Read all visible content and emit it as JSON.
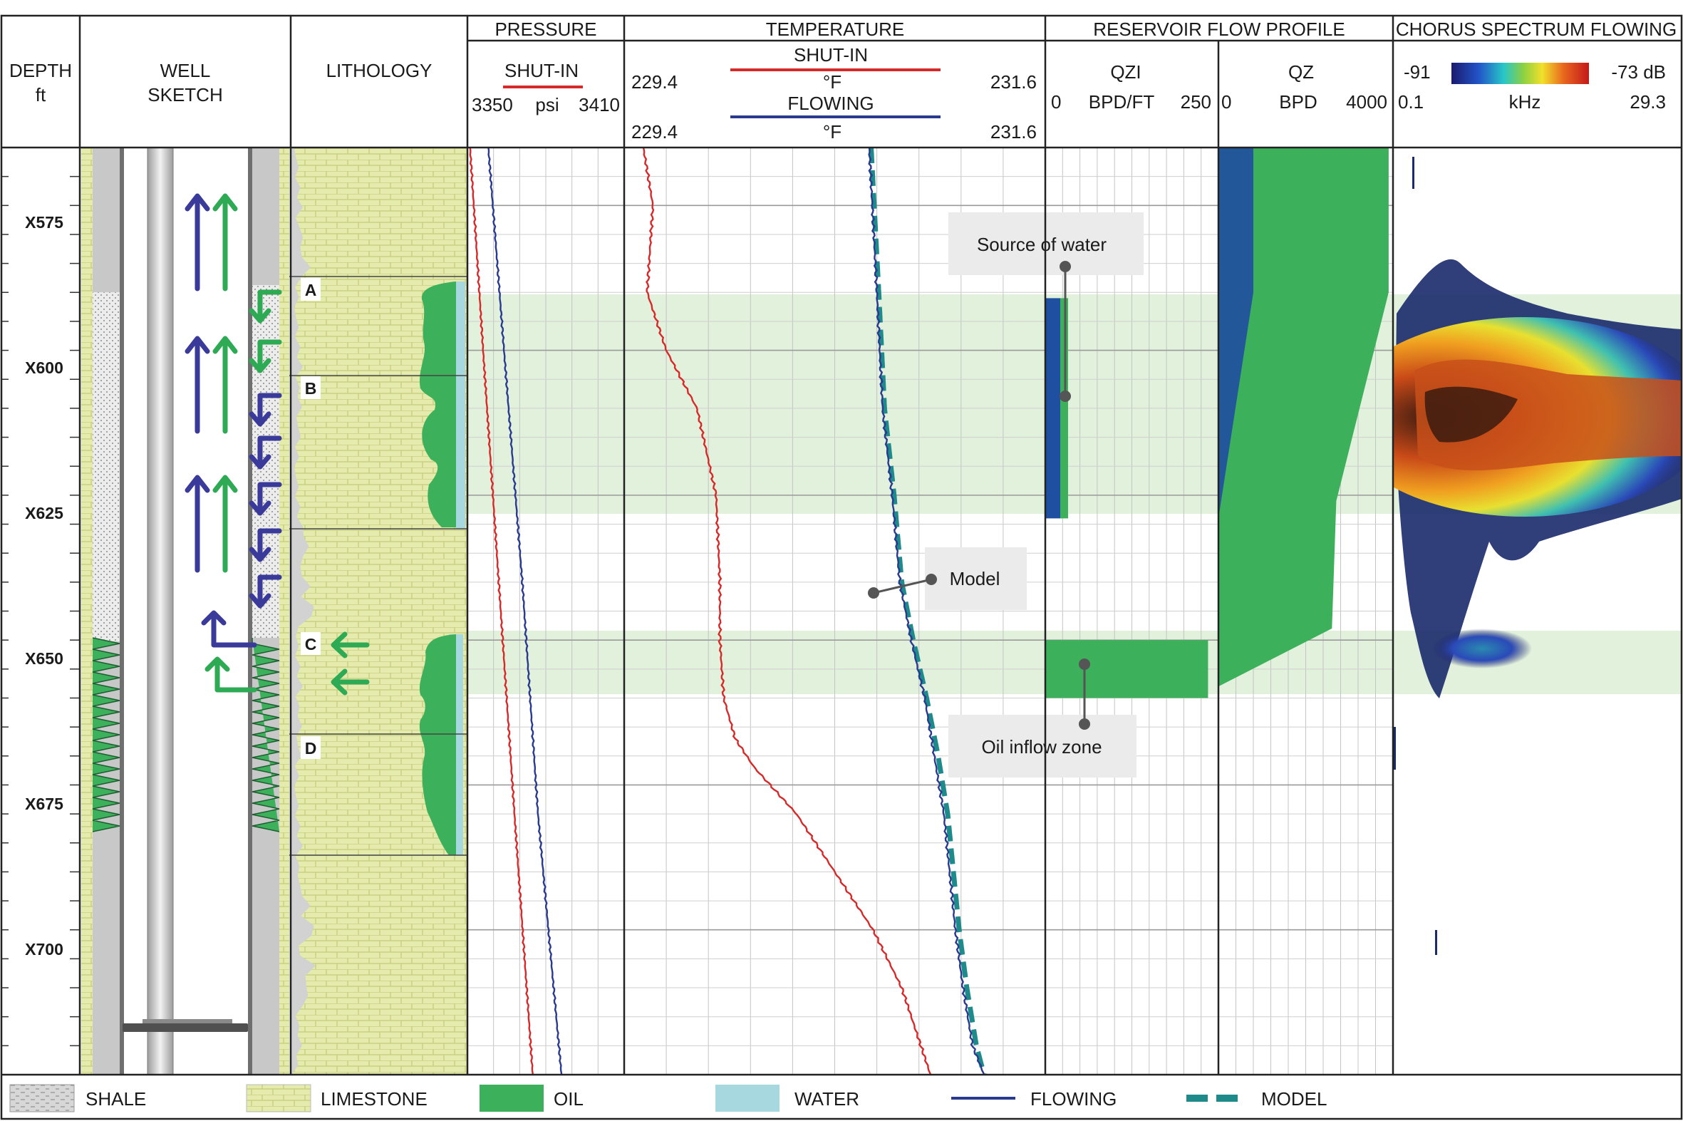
{
  "colors": {
    "shutin": "#d62a2a",
    "flowing": "#2a3a8f",
    "model": "#1f8a8a",
    "oil": "#3cb05a",
    "water": "#a8d8df",
    "limestone": "#e5ebad",
    "zone_band": "#d7ecd0",
    "grid": "#b8b8b8",
    "arrow_blue": "#3a3a9a",
    "arrow_green": "#2eaa55",
    "qz_blue": "#1f4fa0"
  },
  "headers": {
    "depth": "DEPTH",
    "depth_unit": "ft",
    "well": "WELL",
    "well2": "SKETCH",
    "lithology": "LITHOLOGY",
    "pressure": "PRESSURE",
    "pressure_sub": "SHUT-IN",
    "pressure_min": "3350",
    "pressure_unit": "psi",
    "pressure_max": "3410",
    "temperature": "TEMPERATURE",
    "temp_shutin": "SHUT-IN",
    "temp_flowing": "FLOWING",
    "temp_unit1": "°F",
    "temp_unit2": "°F",
    "temp_min1": "229.4",
    "temp_max1": "231.6",
    "temp_min2": "229.4",
    "temp_max2": "231.6",
    "reservoir": "RESERVOIR FLOW PROFILE",
    "qzi": "QZI",
    "qzi_min": "0",
    "qzi_unit": "BPD/FT",
    "qzi_max": "250",
    "qz": "QZ",
    "qz_min": "0",
    "qz_unit": "BPD",
    "qz_max": "4000",
    "chorus": "CHORUS SPECTRUM FLOWING",
    "db_min": "-91",
    "db_max": "-73 dB",
    "khz_min": "0.1",
    "khz_unit": "kHz",
    "khz_max": "29.3"
  },
  "depth_labels": [
    "X575",
    "X600",
    "X625",
    "X650",
    "X675",
    "X700"
  ],
  "zones": [
    "A",
    "B",
    "C",
    "D"
  ],
  "annotations": {
    "source_water": "Source of water",
    "model": "Model",
    "oil_inflow": "Oil inflow zone"
  },
  "legend": {
    "shale": "SHALE",
    "limestone": "LIMESTONE",
    "oil": "OIL",
    "water": "WATER",
    "flowing": "FLOWING",
    "model": "MODEL"
  },
  "chart_data": {
    "type": "line",
    "depth_range": [
      565,
      725
    ],
    "zone_bands": [
      [
        591,
        629
      ],
      [
        649,
        660
      ]
    ],
    "pressure_shutin": {
      "xlim": [
        3350,
        3410
      ],
      "depth": [
        565,
        600,
        640,
        680,
        725
      ],
      "values": [
        3351,
        3356,
        3362,
        3368,
        3375
      ]
    },
    "pressure_flowing": {
      "xlim": [
        3350,
        3410
      ],
      "depth": [
        565,
        600,
        640,
        680,
        725
      ],
      "values": [
        3358,
        3364,
        3371,
        3377,
        3386
      ]
    },
    "temperature_shutin": {
      "xlim": [
        229.4,
        231.6
      ],
      "depth": [
        565,
        575,
        590,
        600,
        610,
        625,
        640,
        650,
        660,
        667,
        672,
        680,
        690,
        700,
        710,
        725
      ],
      "values": [
        229.5,
        229.55,
        229.52,
        229.62,
        229.78,
        229.88,
        229.9,
        229.9,
        229.92,
        229.98,
        230.08,
        230.3,
        230.5,
        230.7,
        230.85,
        231.0
      ]
    },
    "temperature_flowing": {
      "xlim": [
        229.4,
        231.6
      ],
      "depth": [
        565,
        590,
        610,
        625,
        640,
        650,
        660,
        670,
        680,
        690,
        700,
        710,
        720,
        725
      ],
      "values": [
        230.68,
        230.72,
        230.75,
        230.8,
        230.84,
        230.9,
        230.97,
        231.02,
        231.07,
        231.1,
        231.13,
        231.17,
        231.22,
        231.28
      ]
    },
    "temperature_model": {
      "xlim": [
        229.4,
        231.6
      ],
      "depth": [
        565,
        590,
        610,
        625,
        640,
        650,
        660,
        670,
        680,
        690,
        700,
        710,
        720,
        725
      ],
      "values": [
        230.69,
        230.73,
        230.76,
        230.81,
        230.85,
        230.91,
        230.98,
        231.04,
        231.09,
        231.12,
        231.15,
        231.19,
        231.24,
        231.28
      ]
    },
    "qzi": {
      "xlim": [
        0,
        250
      ],
      "intervals": [
        {
          "top": 591,
          "bottom": 629,
          "value": 23,
          "phase": "water"
        },
        {
          "top": 591,
          "bottom": 629,
          "value": 12,
          "phase": "oil"
        },
        {
          "top": 650,
          "bottom": 660,
          "value": 250,
          "phase": "oil"
        }
      ]
    },
    "qz": {
      "xlim": [
        0,
        4000
      ],
      "oil_depth": [
        565,
        590,
        626,
        648,
        658
      ],
      "oil_values": [
        3900,
        3900,
        2700,
        2600,
        0
      ],
      "water_depth": [
        565,
        590,
        629
      ],
      "water_values": [
        800,
        800,
        0
      ]
    },
    "spectrum": {
      "db_range": [
        -91,
        -73
      ],
      "khz_range": [
        0.1,
        29.3
      ]
    }
  }
}
